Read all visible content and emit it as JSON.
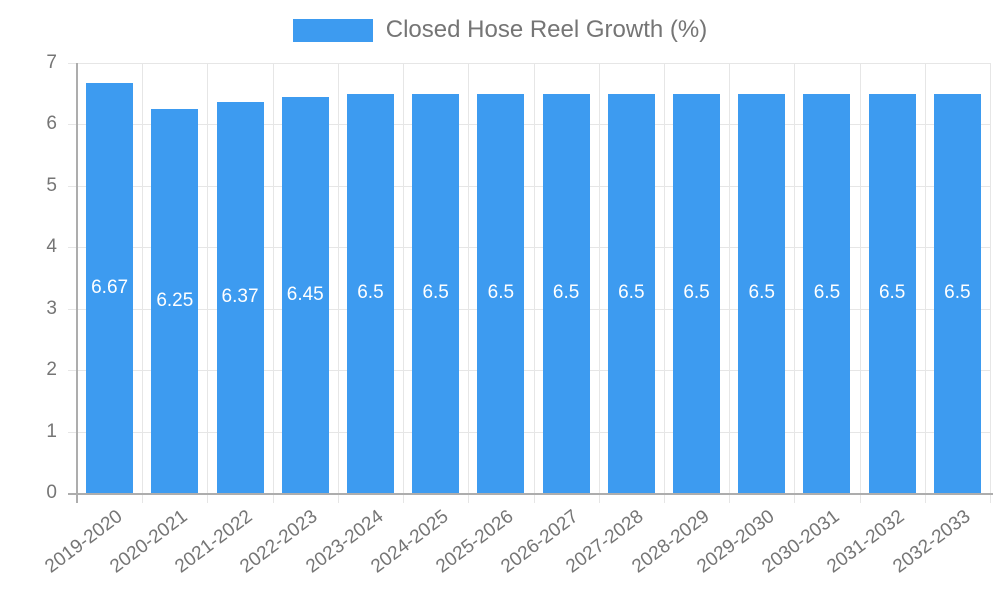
{
  "chart_data": {
    "type": "bar",
    "title": "",
    "legend": {
      "label": "Closed Hose Reel Growth (%)",
      "position": "top"
    },
    "categories": [
      "2019-2020",
      "2020-2021",
      "2021-2022",
      "2022-2023",
      "2023-2024",
      "2024-2025",
      "2025-2026",
      "2026-2027",
      "2027-2028",
      "2028-2029",
      "2029-2030",
      "2030-2031",
      "2031-2032",
      "2032-2033"
    ],
    "values": [
      6.67,
      6.25,
      6.37,
      6.45,
      6.5,
      6.5,
      6.5,
      6.5,
      6.5,
      6.5,
      6.5,
      6.5,
      6.5,
      6.5
    ],
    "value_labels": [
      "6.67",
      "6.25",
      "6.37",
      "6.45",
      "6.5",
      "6.5",
      "6.5",
      "6.5",
      "6.5",
      "6.5",
      "6.5",
      "6.5",
      "6.5",
      "6.5"
    ],
    "xlabel": "",
    "ylabel": "",
    "ylim": [
      0,
      7
    ],
    "yticks": [
      0,
      1,
      2,
      3,
      4,
      5,
      6,
      7
    ],
    "grid": true,
    "x_label_rotation_deg": -37,
    "colors": {
      "bar": "#3D9BF0",
      "grid": "#E6E6E6",
      "axis": "#ADADAD",
      "tick_text": "#757575",
      "bar_label": "#FFFFFF",
      "background": "#FFFFFF"
    }
  }
}
